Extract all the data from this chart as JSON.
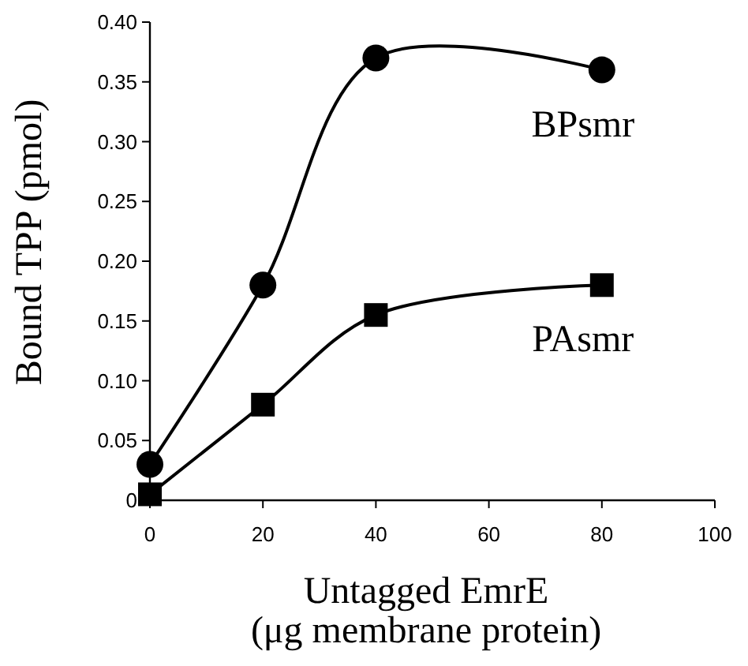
{
  "chart_data": {
    "type": "line",
    "xlabel": "Untagged EmrE\n(μg membrane protein)",
    "ylabel": "Bound TPP (pmol)",
    "x": [
      0,
      20,
      40,
      80
    ],
    "xlim": [
      0,
      100
    ],
    "xticks": [
      0,
      20,
      40,
      60,
      80,
      100
    ],
    "ylim": [
      0,
      0.4
    ],
    "yticks": [
      0,
      0.05,
      {
        "value": 0.1,
        "label": "0.10"
      },
      0.15,
      {
        "value": 0.2,
        "label": "0.20"
      },
      0.25,
      {
        "value": 0.3,
        "label": "0.30"
      },
      0.35,
      {
        "value": 0.4,
        "label": "0.40"
      }
    ],
    "series": [
      {
        "name": "BPsmr",
        "color": "#000000",
        "marker": "circle",
        "values": [
          0.03,
          0.18,
          0.37,
          0.36
        ]
      },
      {
        "name": "PAsmr",
        "color": "#000000",
        "marker": "square",
        "values": [
          0.005,
          0.08,
          0.155,
          0.18
        ]
      }
    ]
  }
}
